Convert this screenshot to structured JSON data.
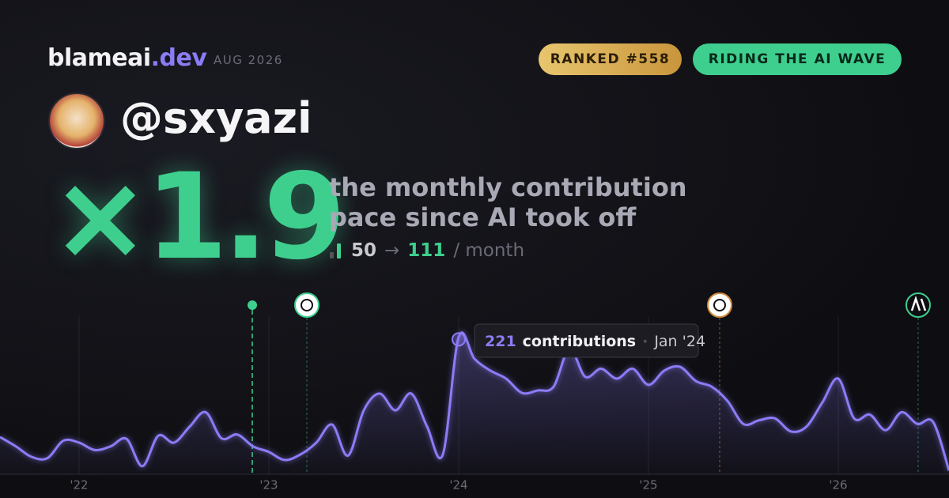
{
  "brand": {
    "name": "blameai",
    "tld": ".dev",
    "date": "AUG 2026"
  },
  "badges": {
    "rank": "RANKED #558",
    "status": "RIDING THE AI WAVE"
  },
  "handle": "@sxyazi",
  "headline": {
    "multiplier": "×1.9",
    "line1": "the monthly contribution",
    "line2": "pace since AI took off",
    "before": "50",
    "arrow": "→",
    "after": "111",
    "unit": "/ month"
  },
  "chart_data": {
    "type": "area",
    "categories": [
      null,
      null,
      null,
      null,
      null,
      "'22",
      null,
      null,
      null,
      null,
      null,
      null,
      null,
      null,
      null,
      null,
      null,
      "'23",
      null,
      null,
      null,
      null,
      null,
      null,
      null,
      null,
      null,
      null,
      null,
      "'24",
      null,
      null,
      null,
      null,
      null,
      null,
      null,
      null,
      null,
      null,
      null,
      "'25",
      null,
      null,
      null,
      null,
      null,
      null,
      null,
      null,
      null,
      null,
      null,
      "'26",
      null,
      null,
      null,
      null,
      null,
      null,
      null
    ],
    "series": [
      {
        "name": "contributions",
        "color": "#8b7cf6",
        "values": [
          60,
          45,
          28,
          26,
          54,
          51,
          39,
          45,
          57,
          13,
          62,
          51,
          77,
          100,
          58,
          64,
          45,
          36,
          23,
          32,
          51,
          80,
          30,
          103,
          130,
          103,
          130,
          77,
          32,
          221,
          186,
          167,
          154,
          131,
          135,
          141,
          202,
          157,
          170,
          154,
          170,
          144,
          167,
          173,
          150,
          141,
          118,
          81,
          87,
          90,
          69,
          77,
          116,
          154,
          90,
          96,
          71,
          100,
          81,
          84,
          6
        ]
      }
    ],
    "ylim": [
      0,
      280
    ],
    "tooltip": {
      "label": "contributions",
      "date": "Jan '24"
    }
  }
}
